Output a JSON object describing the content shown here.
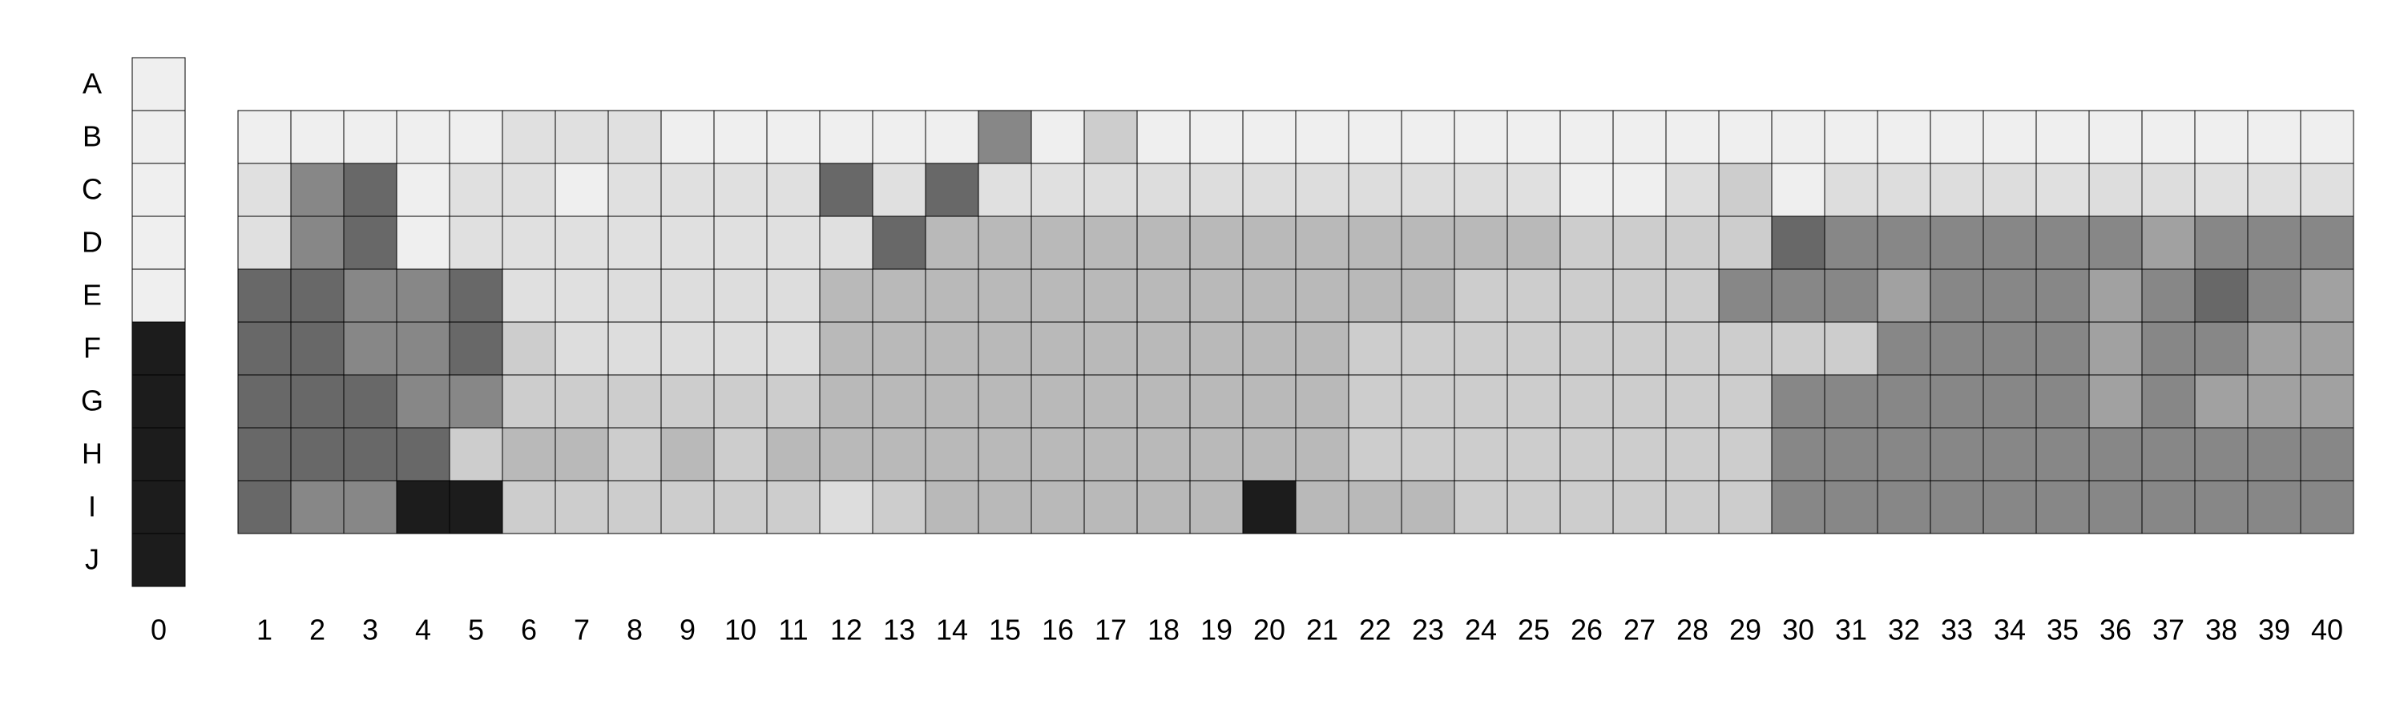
{
  "row_labels": [
    "A",
    "B",
    "C",
    "D",
    "E",
    "F",
    "G",
    "H",
    "I",
    "J"
  ],
  "column_labels": [
    "0",
    "1",
    "2",
    "3",
    "4",
    "5",
    "6",
    "7",
    "8",
    "9",
    "10",
    "11",
    "12",
    "13",
    "14",
    "15",
    "16",
    "17",
    "18",
    "19",
    "20",
    "21",
    "22",
    "23",
    "24",
    "25",
    "26",
    "27",
    "28",
    "29",
    "30",
    "31",
    "32",
    "33",
    "34",
    "35",
    "36",
    "37",
    "38",
    "39",
    "40"
  ],
  "legend_column": {
    "label": "0",
    "cells": [
      "#efefef",
      "#efefef",
      "#efefef",
      "#efefef",
      "#efefef",
      "#1c1c1c",
      "#1c1c1c",
      "#1c1c1c",
      "#1c1c1c",
      "#1c1c1c"
    ]
  },
  "grid": {
    "rows": [
      "B",
      "C",
      "D",
      "E",
      "F",
      "G",
      "H",
      "I"
    ],
    "values": [
      "1111122211111171511111111111111111111111",
      "2761221222262622333333332113513333233222",
      "2761222222226444444444444555567777778777",
      "6677622333344444444444455555777877787678",
      "6677653333344444444445555555555777787788",
      "6667755555544444444445555555577777787888",
      "6666544545444444444445555555577777777777",
      "6779955555535444444944455555577777777777"
    ],
    "palette": {
      "1": "#efefef",
      "2": "#e0e0e0",
      "3": "#dddddd",
      "4": "#b9b9b9",
      "5": "#cdcdcd",
      "6": "#686868",
      "7": "#878787",
      "8": "#a1a1a1",
      "9": "#1c1c1c",
      "w": "#ffffff"
    }
  }
}
